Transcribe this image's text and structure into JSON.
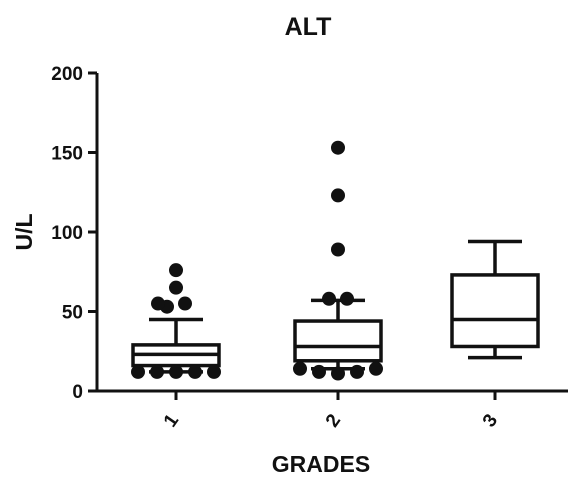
{
  "chart_data": {
    "type": "boxplot",
    "title": "ALT",
    "xlabel": "GRADES",
    "ylabel": "U/L",
    "ylim": [
      0,
      200
    ],
    "yticks": [
      0,
      50,
      100,
      150,
      200
    ],
    "categories": [
      "1",
      "2",
      "3"
    ],
    "boxes": [
      {
        "category": "1",
        "whisker_low": 12,
        "q1": 16,
        "median": 23,
        "q3": 29,
        "whisker_high": 45,
        "outliers": [
          12,
          12,
          12,
          12,
          12,
          53,
          55,
          55,
          65,
          76
        ]
      },
      {
        "category": "2",
        "whisker_low": 14,
        "q1": 19,
        "median": 28,
        "q3": 44,
        "whisker_high": 57,
        "outliers": [
          14,
          12,
          11,
          12,
          14,
          58,
          58,
          89,
          123,
          153
        ]
      },
      {
        "category": "3",
        "whisker_low": 21,
        "q1": 28,
        "median": 45,
        "q3": 73,
        "whisker_high": 94,
        "outliers": []
      }
    ],
    "grid": false,
    "legend": "none"
  }
}
